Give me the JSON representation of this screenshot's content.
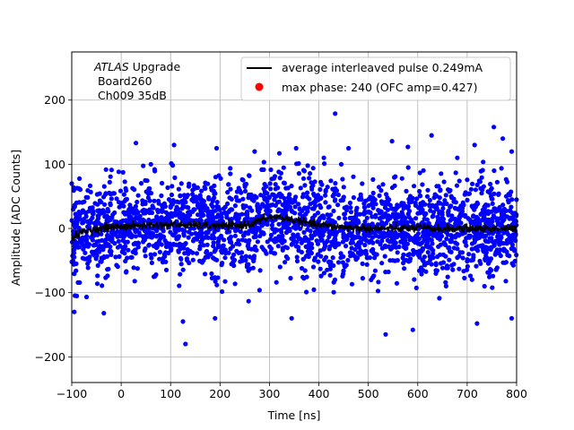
{
  "chart_data": {
    "type": "scatter",
    "title": "",
    "xlabel": "Time [ns]",
    "ylabel": "Amplitude [ADC Counts]",
    "xlim": [
      -100,
      800
    ],
    "ylim": [
      -240,
      275
    ],
    "xticks": [
      -100,
      0,
      100,
      200,
      300,
      400,
      500,
      600,
      700,
      800
    ],
    "yticks": [
      -200,
      -100,
      0,
      100,
      200
    ],
    "grid": true,
    "annotation": {
      "italic": "ATLAS",
      "rest": " Upgrade",
      "line2": " Board260",
      "line3": " Ch009 35dB"
    },
    "legend": {
      "position": "top-right",
      "entries": [
        {
          "label": "average interleaved pulse 0.249mA",
          "kind": "line",
          "color": "#000000"
        },
        {
          "label": "max phase: 240 (OFC amp=0.427)",
          "kind": "marker",
          "color": "#ff0000"
        }
      ]
    },
    "series": [
      {
        "name": "samples",
        "kind": "scatter",
        "color": "#0000ff",
        "description_points": "dense noise cloud, roughly uniform in time, amplitude mostly within -110..100",
        "outliers": [
          [
            433,
            179
          ],
          [
            754,
            158
          ],
          [
            772,
            140
          ],
          [
            628,
            145
          ],
          [
            548,
            136
          ],
          [
            30,
            133
          ],
          [
            107,
            130
          ],
          [
            193,
            125
          ],
          [
            580,
            127
          ],
          [
            460,
            125
          ],
          [
            354,
            125
          ],
          [
            715,
            130
          ],
          [
            790,
            120
          ],
          [
            -85,
            62
          ],
          [
            -100,
            70
          ],
          [
            125,
            -145
          ],
          [
            130,
            -180
          ],
          [
            535,
            -165
          ],
          [
            720,
            -148
          ],
          [
            790,
            -140
          ],
          [
            -95,
            -130
          ],
          [
            190,
            -140
          ],
          [
            590,
            -158
          ],
          [
            -35,
            -132
          ],
          [
            345,
            -140
          ],
          [
            320,
            117
          ],
          [
            270,
            120
          ],
          [
            60,
            100
          ],
          [
            410,
            110
          ],
          [
            680,
            110
          ]
        ]
      },
      {
        "name": "average interleaved pulse 0.249mA",
        "kind": "line",
        "color": "#000000",
        "x": [
          -100,
          -80,
          -60,
          -40,
          -20,
          0,
          50,
          100,
          150,
          200,
          250,
          270,
          290,
          310,
          330,
          350,
          380,
          400,
          450,
          500,
          550,
          600,
          650,
          700,
          750,
          800
        ],
        "y": [
          -14,
          -6,
          -2,
          0,
          2,
          3,
          5,
          6,
          5,
          4,
          5,
          9,
          15,
          18,
          16,
          13,
          8,
          5,
          2,
          0,
          0,
          1,
          -1,
          0,
          0,
          -1
        ]
      }
    ]
  }
}
